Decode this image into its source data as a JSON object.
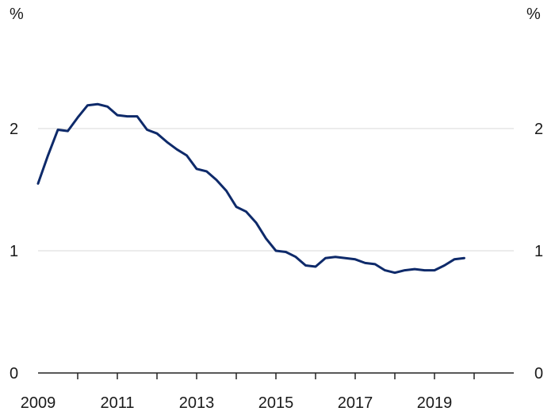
{
  "chart_data": {
    "type": "line",
    "title": "",
    "xlabel": "",
    "ylabel": "",
    "y_unit_left": "%",
    "y_unit_right": "%",
    "xlim": [
      2009,
      2021
    ],
    "ylim": [
      0,
      3
    ],
    "y_ticks": [
      0,
      1,
      2
    ],
    "y_tick_labels": [
      "0",
      "1",
      "2"
    ],
    "x_label_years": [
      2009,
      2011,
      2013,
      2015,
      2017,
      2019
    ],
    "x_tick_labels": [
      "2009",
      "2011",
      "2013",
      "2015",
      "2017",
      "2019"
    ],
    "x_tick_years": [
      2010,
      2011,
      2012,
      2013,
      2014,
      2015,
      2016,
      2017,
      2018,
      2019,
      2020
    ],
    "grid": true,
    "color": "#0e2a6a",
    "series": [
      {
        "name": "",
        "x": [
          2009.0,
          2009.25,
          2009.5,
          2009.75,
          2010.0,
          2010.25,
          2010.5,
          2010.75,
          2011.0,
          2011.25,
          2011.5,
          2011.75,
          2012.0,
          2012.25,
          2012.5,
          2012.75,
          2013.0,
          2013.25,
          2013.5,
          2013.75,
          2014.0,
          2014.25,
          2014.5,
          2014.75,
          2015.0,
          2015.25,
          2015.5,
          2015.75,
          2016.0,
          2016.25,
          2016.5,
          2016.75,
          2017.0,
          2017.25,
          2017.5,
          2017.75,
          2018.0,
          2018.25,
          2018.5,
          2018.75,
          2019.0,
          2019.25,
          2019.5,
          2019.75
        ],
        "values": [
          1.55,
          1.78,
          1.99,
          1.98,
          2.09,
          2.19,
          2.2,
          2.18,
          2.11,
          2.1,
          2.1,
          1.99,
          1.96,
          1.89,
          1.83,
          1.78,
          1.67,
          1.65,
          1.58,
          1.49,
          1.36,
          1.32,
          1.23,
          1.1,
          1.0,
          0.99,
          0.95,
          0.88,
          0.87,
          0.94,
          0.95,
          0.94,
          0.93,
          0.9,
          0.89,
          0.84,
          0.82,
          0.84,
          0.85,
          0.84,
          0.84,
          0.88,
          0.93,
          0.94
        ]
      }
    ]
  }
}
